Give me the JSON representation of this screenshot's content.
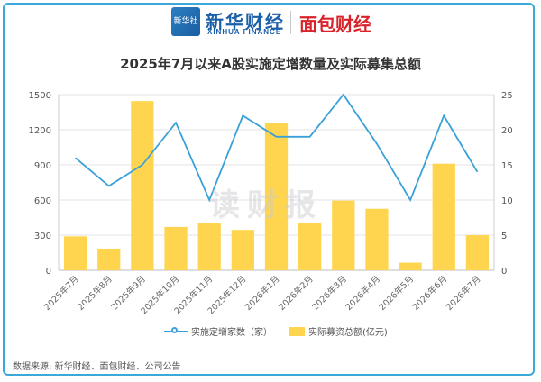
{
  "header": {
    "logo_badge_text": "新华社",
    "brand_primary": "新华财经",
    "brand_primary_sub": "XINHUA FINANCE",
    "brand_secondary": "面包财经"
  },
  "watermark": "读财报",
  "chart_data": {
    "type": "bar+line",
    "title": "2025年7月以来A股实施定增数量及实际募集总额",
    "categories": [
      "2025年7月",
      "2025年8月",
      "2025年9月",
      "2025年10月",
      "2025年11月",
      "2025年12月",
      "2026年1月",
      "2026年2月",
      "2026年3月",
      "2026年4月",
      "2026年5月",
      "2026年6月",
      "2026年7月"
    ],
    "series": [
      {
        "name": "实际募资总额(亿元)",
        "kind": "bar",
        "axis": "left",
        "color": "#ffd54f",
        "values": [
          290,
          185,
          1445,
          370,
          400,
          345,
          1255,
          400,
          595,
          525,
          65,
          910,
          300
        ]
      },
      {
        "name": "实施定增家数（家）",
        "kind": "line",
        "axis": "right",
        "color": "#3aa0d8",
        "values": [
          16,
          12,
          15,
          21,
          10,
          22,
          19,
          19,
          25,
          18,
          10,
          22,
          14
        ]
      }
    ],
    "y_left": {
      "range": [
        0,
        1500
      ],
      "ticks": [
        "0",
        "300",
        "600",
        "900",
        "1200",
        "1500"
      ]
    },
    "y_right": {
      "range": [
        0,
        25
      ],
      "ticks": [
        "0",
        "5",
        "10",
        "15",
        "20",
        "25"
      ]
    },
    "grid": true,
    "legend_position": "bottom"
  },
  "source_note": "数据来源: 新华财经、面包财经、公司公告"
}
